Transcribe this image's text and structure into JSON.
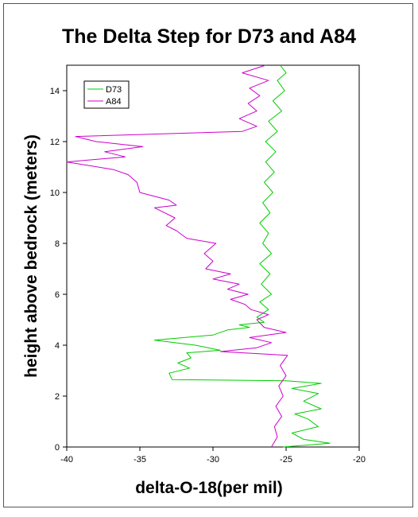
{
  "chart_data": {
    "type": "line",
    "title": "The Delta Step for D73 and A84",
    "xlabel": "delta-O-18(per mil)",
    "ylabel": "height above bedrock (meters)",
    "xlim": [
      -40,
      -20
    ],
    "ylim": [
      0,
      15
    ],
    "xticks": [
      "-40",
      "-35",
      "-30",
      "-25",
      "-20"
    ],
    "yticks": [
      "0",
      "2",
      "4",
      "6",
      "8",
      "10",
      "12",
      "14"
    ],
    "grid": false,
    "legend": "top-left",
    "series": [
      {
        "name": "D73",
        "color": "#00cc00",
        "points": [
          [
            -25.2,
            0.0
          ],
          [
            -22.0,
            0.15
          ],
          [
            -23.8,
            0.3
          ],
          [
            -24.6,
            0.55
          ],
          [
            -22.8,
            0.8
          ],
          [
            -23.5,
            1.1
          ],
          [
            -24.4,
            1.3
          ],
          [
            -22.6,
            1.5
          ],
          [
            -23.8,
            1.8
          ],
          [
            -22.8,
            2.1
          ],
          [
            -24.6,
            2.3
          ],
          [
            -22.6,
            2.5
          ],
          [
            -25.0,
            2.6
          ],
          [
            -32.8,
            2.65
          ],
          [
            -33.0,
            2.9
          ],
          [
            -31.6,
            3.1
          ],
          [
            -32.4,
            3.3
          ],
          [
            -31.5,
            3.5
          ],
          [
            -31.8,
            3.7
          ],
          [
            -29.5,
            3.8
          ],
          [
            -31.2,
            4.0
          ],
          [
            -34.0,
            4.2
          ],
          [
            -30.0,
            4.4
          ],
          [
            -29.0,
            4.6
          ],
          [
            -27.5,
            4.7
          ],
          [
            -28.2,
            4.8
          ],
          [
            -26.5,
            4.9
          ],
          [
            -27.0,
            5.1
          ],
          [
            -26.2,
            5.4
          ],
          [
            -26.8,
            5.7
          ],
          [
            -26.0,
            6.0
          ],
          [
            -26.7,
            6.4
          ],
          [
            -26.1,
            6.8
          ],
          [
            -26.8,
            7.2
          ],
          [
            -26.0,
            7.6
          ],
          [
            -26.6,
            8.0
          ],
          [
            -26.2,
            8.4
          ],
          [
            -26.8,
            8.8
          ],
          [
            -26.1,
            9.2
          ],
          [
            -26.6,
            9.6
          ],
          [
            -25.9,
            10.0
          ],
          [
            -26.5,
            10.4
          ],
          [
            -25.8,
            10.8
          ],
          [
            -26.4,
            11.2
          ],
          [
            -25.7,
            11.6
          ],
          [
            -26.4,
            12.0
          ],
          [
            -25.6,
            12.4
          ],
          [
            -26.2,
            12.8
          ],
          [
            -25.3,
            13.2
          ],
          [
            -25.9,
            13.6
          ],
          [
            -25.1,
            14.0
          ],
          [
            -25.6,
            14.4
          ],
          [
            -25.0,
            14.7
          ],
          [
            -25.4,
            15.0
          ]
        ]
      },
      {
        "name": "A84",
        "color": "#cc00cc",
        "points": [
          [
            -26.0,
            0.0
          ],
          [
            -25.6,
            0.4
          ],
          [
            -25.8,
            0.8
          ],
          [
            -25.3,
            1.2
          ],
          [
            -25.7,
            1.6
          ],
          [
            -25.2,
            2.0
          ],
          [
            -25.5,
            2.4
          ],
          [
            -25.0,
            2.8
          ],
          [
            -25.4,
            3.2
          ],
          [
            -24.9,
            3.6
          ],
          [
            -29.5,
            3.75
          ],
          [
            -27.0,
            3.9
          ],
          [
            -26.0,
            4.1
          ],
          [
            -27.5,
            4.3
          ],
          [
            -25.0,
            4.5
          ],
          [
            -26.5,
            4.7
          ],
          [
            -27.0,
            5.0
          ],
          [
            -26.2,
            5.2
          ],
          [
            -27.4,
            5.4
          ],
          [
            -27.8,
            5.6
          ],
          [
            -28.8,
            5.8
          ],
          [
            -27.6,
            6.0
          ],
          [
            -29.0,
            6.2
          ],
          [
            -28.2,
            6.4
          ],
          [
            -30.0,
            6.6
          ],
          [
            -28.8,
            6.8
          ],
          [
            -30.5,
            7.0
          ],
          [
            -30.0,
            7.3
          ],
          [
            -30.6,
            7.6
          ],
          [
            -29.8,
            8.0
          ],
          [
            -31.8,
            8.2
          ],
          [
            -32.5,
            8.5
          ],
          [
            -33.2,
            8.7
          ],
          [
            -32.6,
            9.0
          ],
          [
            -34.0,
            9.4
          ],
          [
            -32.5,
            9.5
          ],
          [
            -33.0,
            9.7
          ],
          [
            -35.0,
            10.0
          ],
          [
            -35.2,
            10.4
          ],
          [
            -35.8,
            10.7
          ],
          [
            -36.8,
            10.9
          ],
          [
            -40.0,
            11.2
          ],
          [
            -36.0,
            11.4
          ],
          [
            -37.4,
            11.6
          ],
          [
            -34.8,
            11.8
          ],
          [
            -38.0,
            12.0
          ],
          [
            -39.4,
            12.2
          ],
          [
            -28.0,
            12.4
          ],
          [
            -27.0,
            12.6
          ],
          [
            -28.2,
            12.9
          ],
          [
            -27.0,
            13.2
          ],
          [
            -27.6,
            13.5
          ],
          [
            -26.8,
            13.8
          ],
          [
            -27.5,
            14.1
          ],
          [
            -26.2,
            14.4
          ],
          [
            -28.0,
            14.7
          ],
          [
            -26.4,
            15.0
          ]
        ]
      }
    ]
  }
}
